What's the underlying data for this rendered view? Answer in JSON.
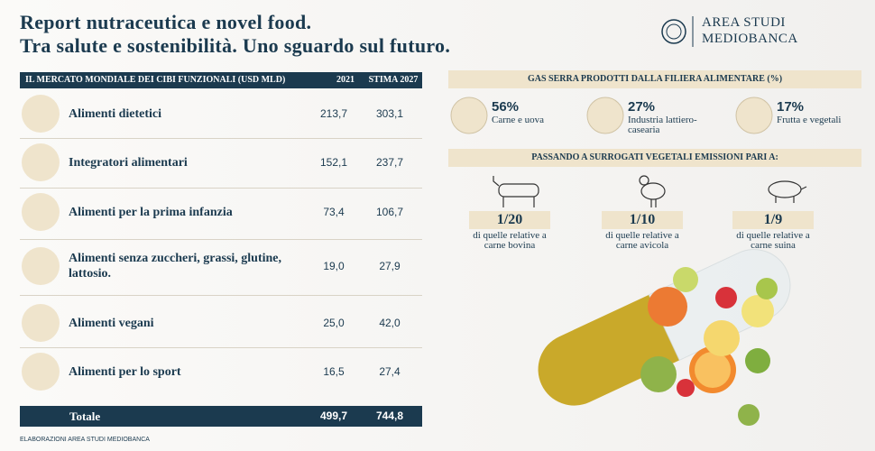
{
  "header": {
    "title_lines": [
      "Report nutraceutica e novel food.",
      "Tra salute e sostenibilità. Uno sguardo sul futuro."
    ],
    "logo_lines": [
      "AREA STUDI",
      "MEDIOBANCA"
    ]
  },
  "table": {
    "columns": [
      "IL MERCATO MONDIALE DEI CIBI FUNZIONALI (USD MLD)",
      "2021",
      "STIMA 2027"
    ],
    "rows": [
      [
        "Alimenti dietetici",
        "213,7",
        "303,1"
      ],
      [
        "Integratori alimentari",
        "152,1",
        "237,7"
      ],
      [
        "Alimenti per la prima infanzia",
        "73,4",
        "106,7"
      ],
      [
        "Alimenti senza zuccheri, grassi, glutine, lattosio.",
        "19,0",
        "27,9"
      ],
      [
        "Alimenti vegani",
        "25,0",
        "42,0"
      ],
      [
        "Alimenti per lo sport",
        "16,5",
        "27,4"
      ]
    ],
    "total": [
      "Totale",
      "499,7",
      "744,8"
    ]
  },
  "footer": "ELABORAZIONI AREA STUDI MEDIOBANCA",
  "emissions": {
    "title": "GAS SERRA PRODOTTI DALLA FILIERA ALIMENTARE (%)",
    "items": [
      {
        "percent": "56%",
        "label": "Carne e uova"
      },
      {
        "percent": "27%",
        "label": "Industria lattiero-casearia"
      },
      {
        "percent": "17%",
        "label": "Frutta e vegetali"
      }
    ]
  },
  "substitutes": {
    "title": "PASSANDO A SURROGATI VEGETALI EMISSIONI PARI A:",
    "items": [
      {
        "ratio": "1/20",
        "label": "di quelle relative a carne bovina"
      },
      {
        "ratio": "1/10",
        "label": "di quelle relative a carne avicola"
      },
      {
        "ratio": "1/9",
        "label": "di quelle relative a carne suina"
      }
    ]
  }
}
